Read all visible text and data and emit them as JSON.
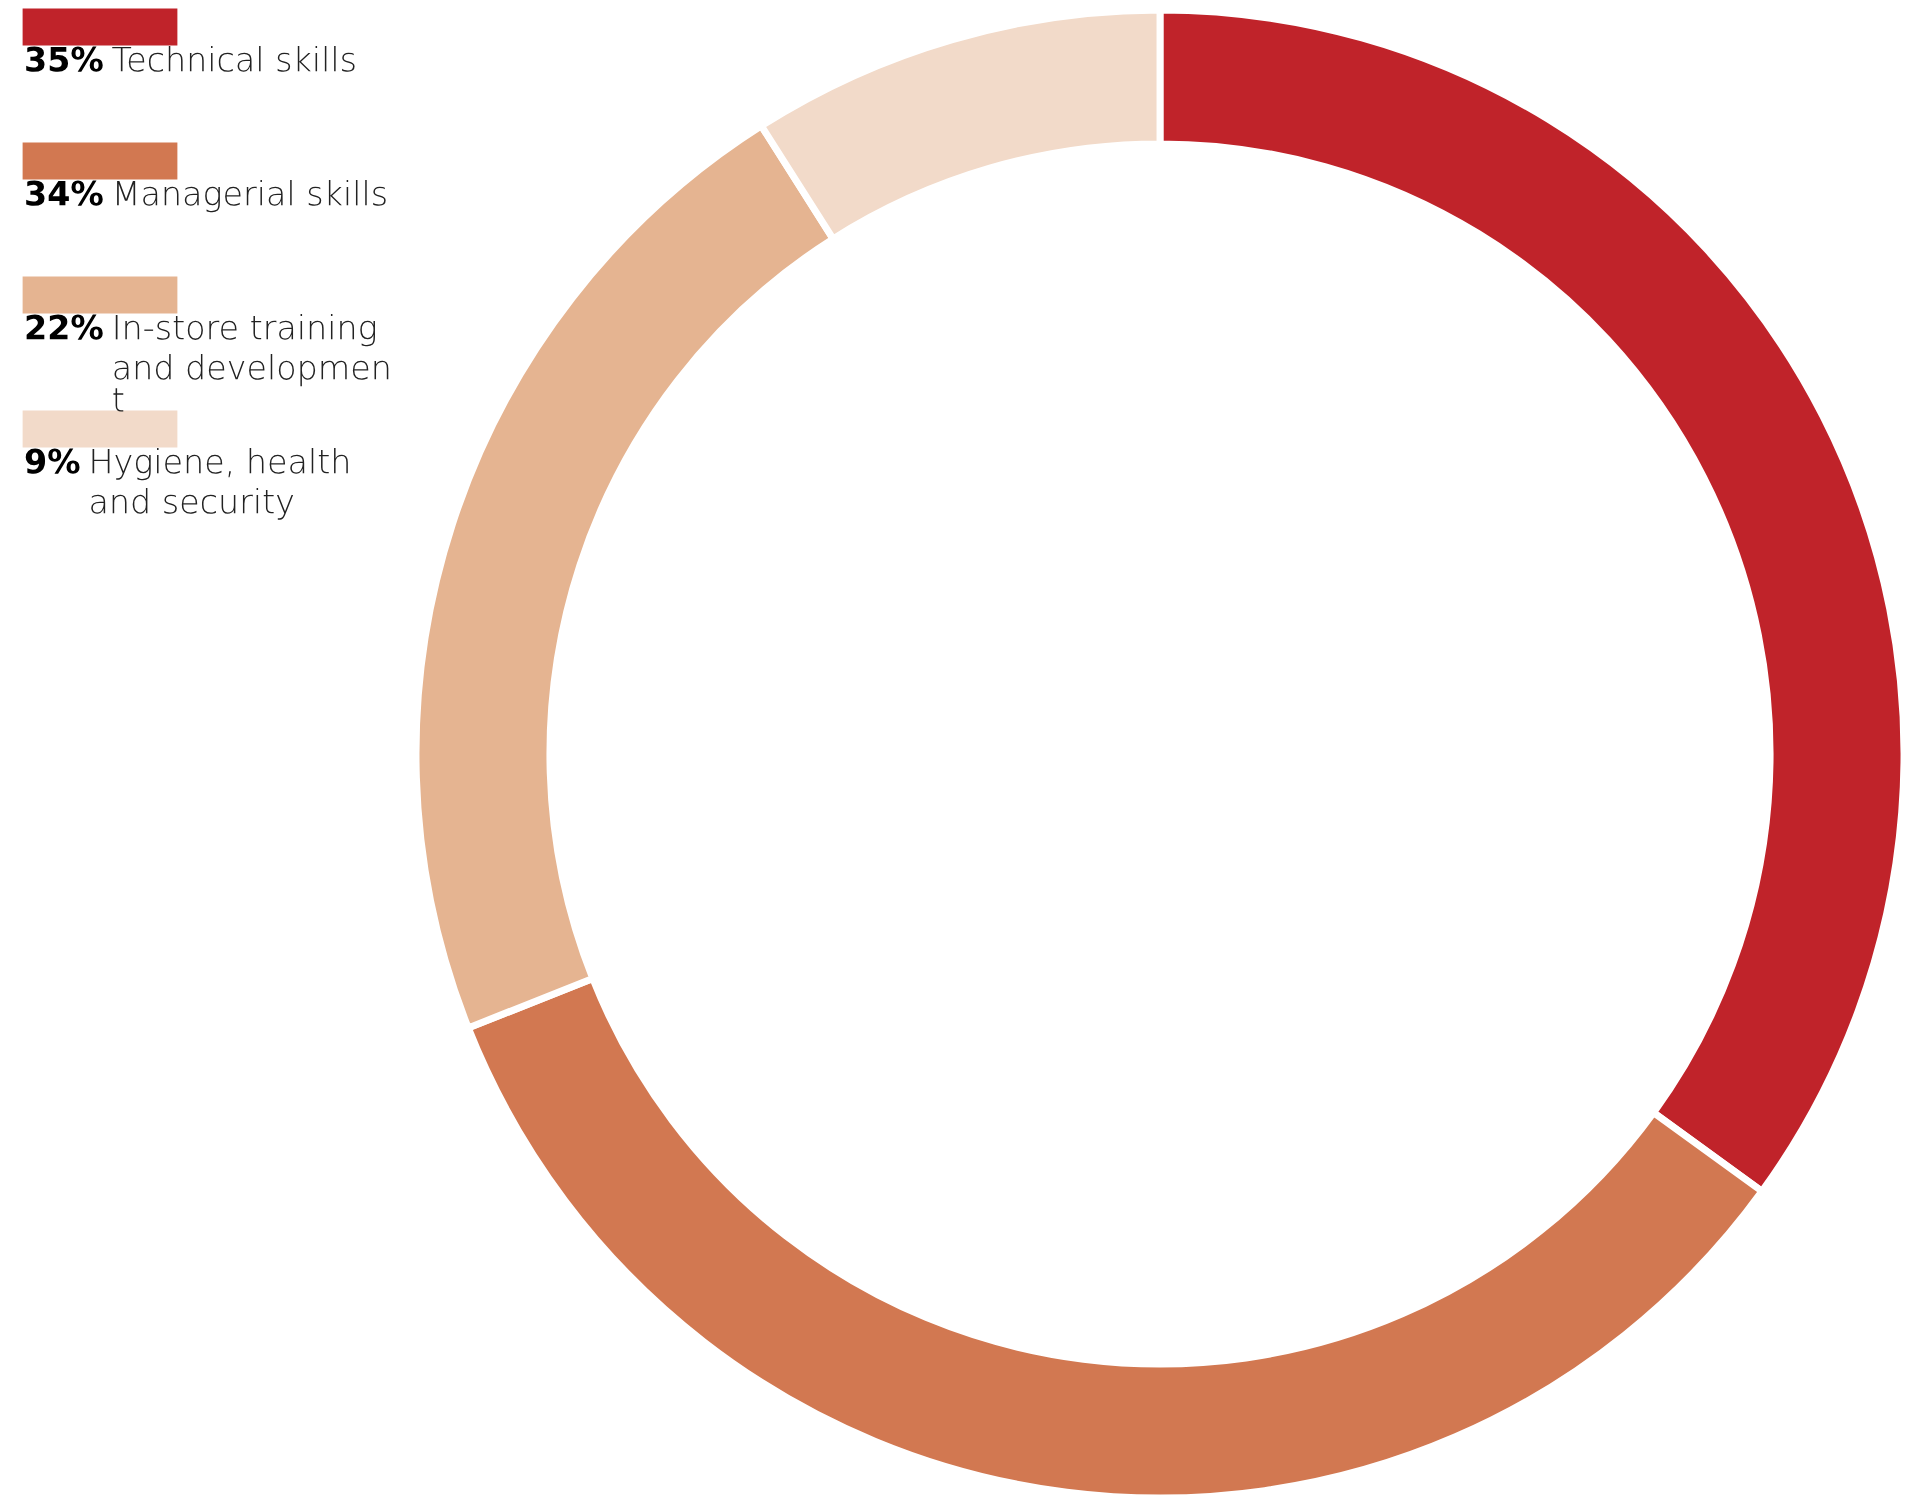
{
  "chart_data": {
    "type": "donut",
    "categories": [
      "Technical skills",
      "Managerial skills",
      "In-store training\nand developmen\nt",
      "Hygiene, health\nand security"
    ],
    "values": [
      35,
      34,
      22,
      9
    ],
    "value_labels": [
      "35%",
      "34%",
      "22%",
      "9%"
    ],
    "colors": [
      "#c0232a",
      "#d27851",
      "#e5b491",
      "#f2dac9"
    ],
    "legend": "top left"
  }
}
